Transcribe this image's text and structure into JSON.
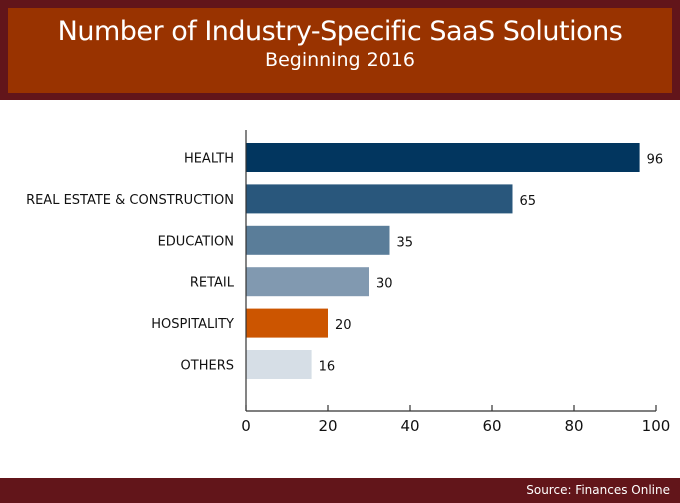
{
  "chart_data": {
    "type": "bar",
    "orientation": "horizontal",
    "title": "Number of Industry-Specific SaaS Solutions",
    "subtitle": "Beginning 2016",
    "categories": [
      "HEALTH",
      "REAL ESTATE & CONSTRUCTION",
      "EDUCATION",
      "RETAIL",
      "HOSPITALITY",
      "OTHERS"
    ],
    "values": [
      96,
      65,
      35,
      30,
      20,
      16
    ],
    "colors": [
      "#02365f",
      "#29577c",
      "#5a7d99",
      "#8199b0",
      "#cc5500",
      "#d6dee6"
    ],
    "xlim": [
      0,
      100
    ],
    "xticks": [
      0,
      20,
      40,
      60,
      80,
      100
    ],
    "xlabel": "",
    "ylabel": "",
    "grid": false,
    "data_labels": true
  },
  "footer": {
    "source": "Source: Finances Online"
  },
  "theme": {
    "header_border": "#62151a",
    "header_fill": "#993300"
  }
}
